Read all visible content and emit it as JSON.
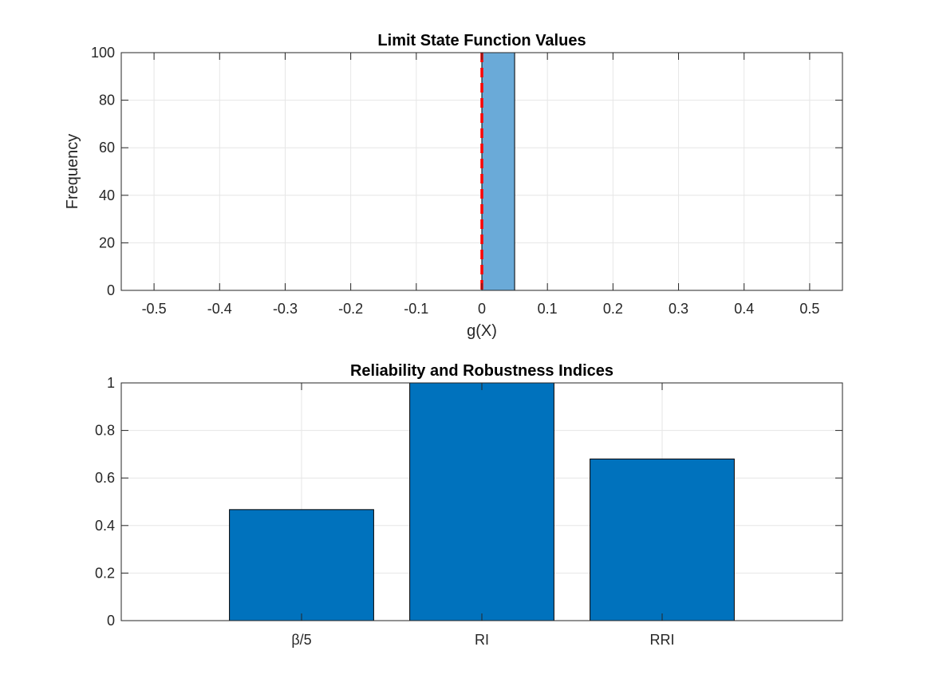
{
  "colors": {
    "hist_fill": "#6aaad8",
    "bar_fill": "#0072bd",
    "threshold_line": "#ff0000",
    "grid": "#e6e6e6",
    "axes": "#262626"
  },
  "chart_data": [
    {
      "type": "bar",
      "subtype": "histogram",
      "title": "Limit State Function Values",
      "xlabel": "g(X)",
      "ylabel": "Frequency",
      "xlim": [
        -0.55,
        0.55
      ],
      "ylim": [
        0,
        100
      ],
      "xticks": [
        -0.5,
        -0.4,
        -0.3,
        -0.2,
        -0.1,
        0,
        0.1,
        0.2,
        0.3,
        0.4,
        0.5
      ],
      "xtick_labels": [
        "-0.5",
        "-0.4",
        "-0.3",
        "-0.2",
        "-0.1",
        "0",
        "0.1",
        "0.2",
        "0.3",
        "0.4",
        "0.5"
      ],
      "yticks": [
        0,
        20,
        40,
        60,
        80,
        100
      ],
      "ytick_labels": [
        "0",
        "20",
        "40",
        "60",
        "80",
        "100"
      ],
      "bins": [
        {
          "x0": 0,
          "x1": 0.05,
          "count": 100
        }
      ],
      "reference_line": {
        "x": 0,
        "style": "dashed",
        "color": "red"
      },
      "grid": true
    },
    {
      "type": "bar",
      "title": "Reliability and Robustness Indices",
      "xlabel": "",
      "ylabel": "",
      "categories": [
        "β/5",
        "RI",
        "RRI"
      ],
      "values": [
        0.467,
        1.0,
        0.68
      ],
      "xlim": [
        0,
        4
      ],
      "ylim": [
        0,
        1
      ],
      "yticks": [
        0,
        0.2,
        0.4,
        0.6,
        0.8,
        1
      ],
      "ytick_labels": [
        "0",
        "0.2",
        "0.4",
        "0.6",
        "0.8",
        "1"
      ],
      "grid": true
    }
  ]
}
